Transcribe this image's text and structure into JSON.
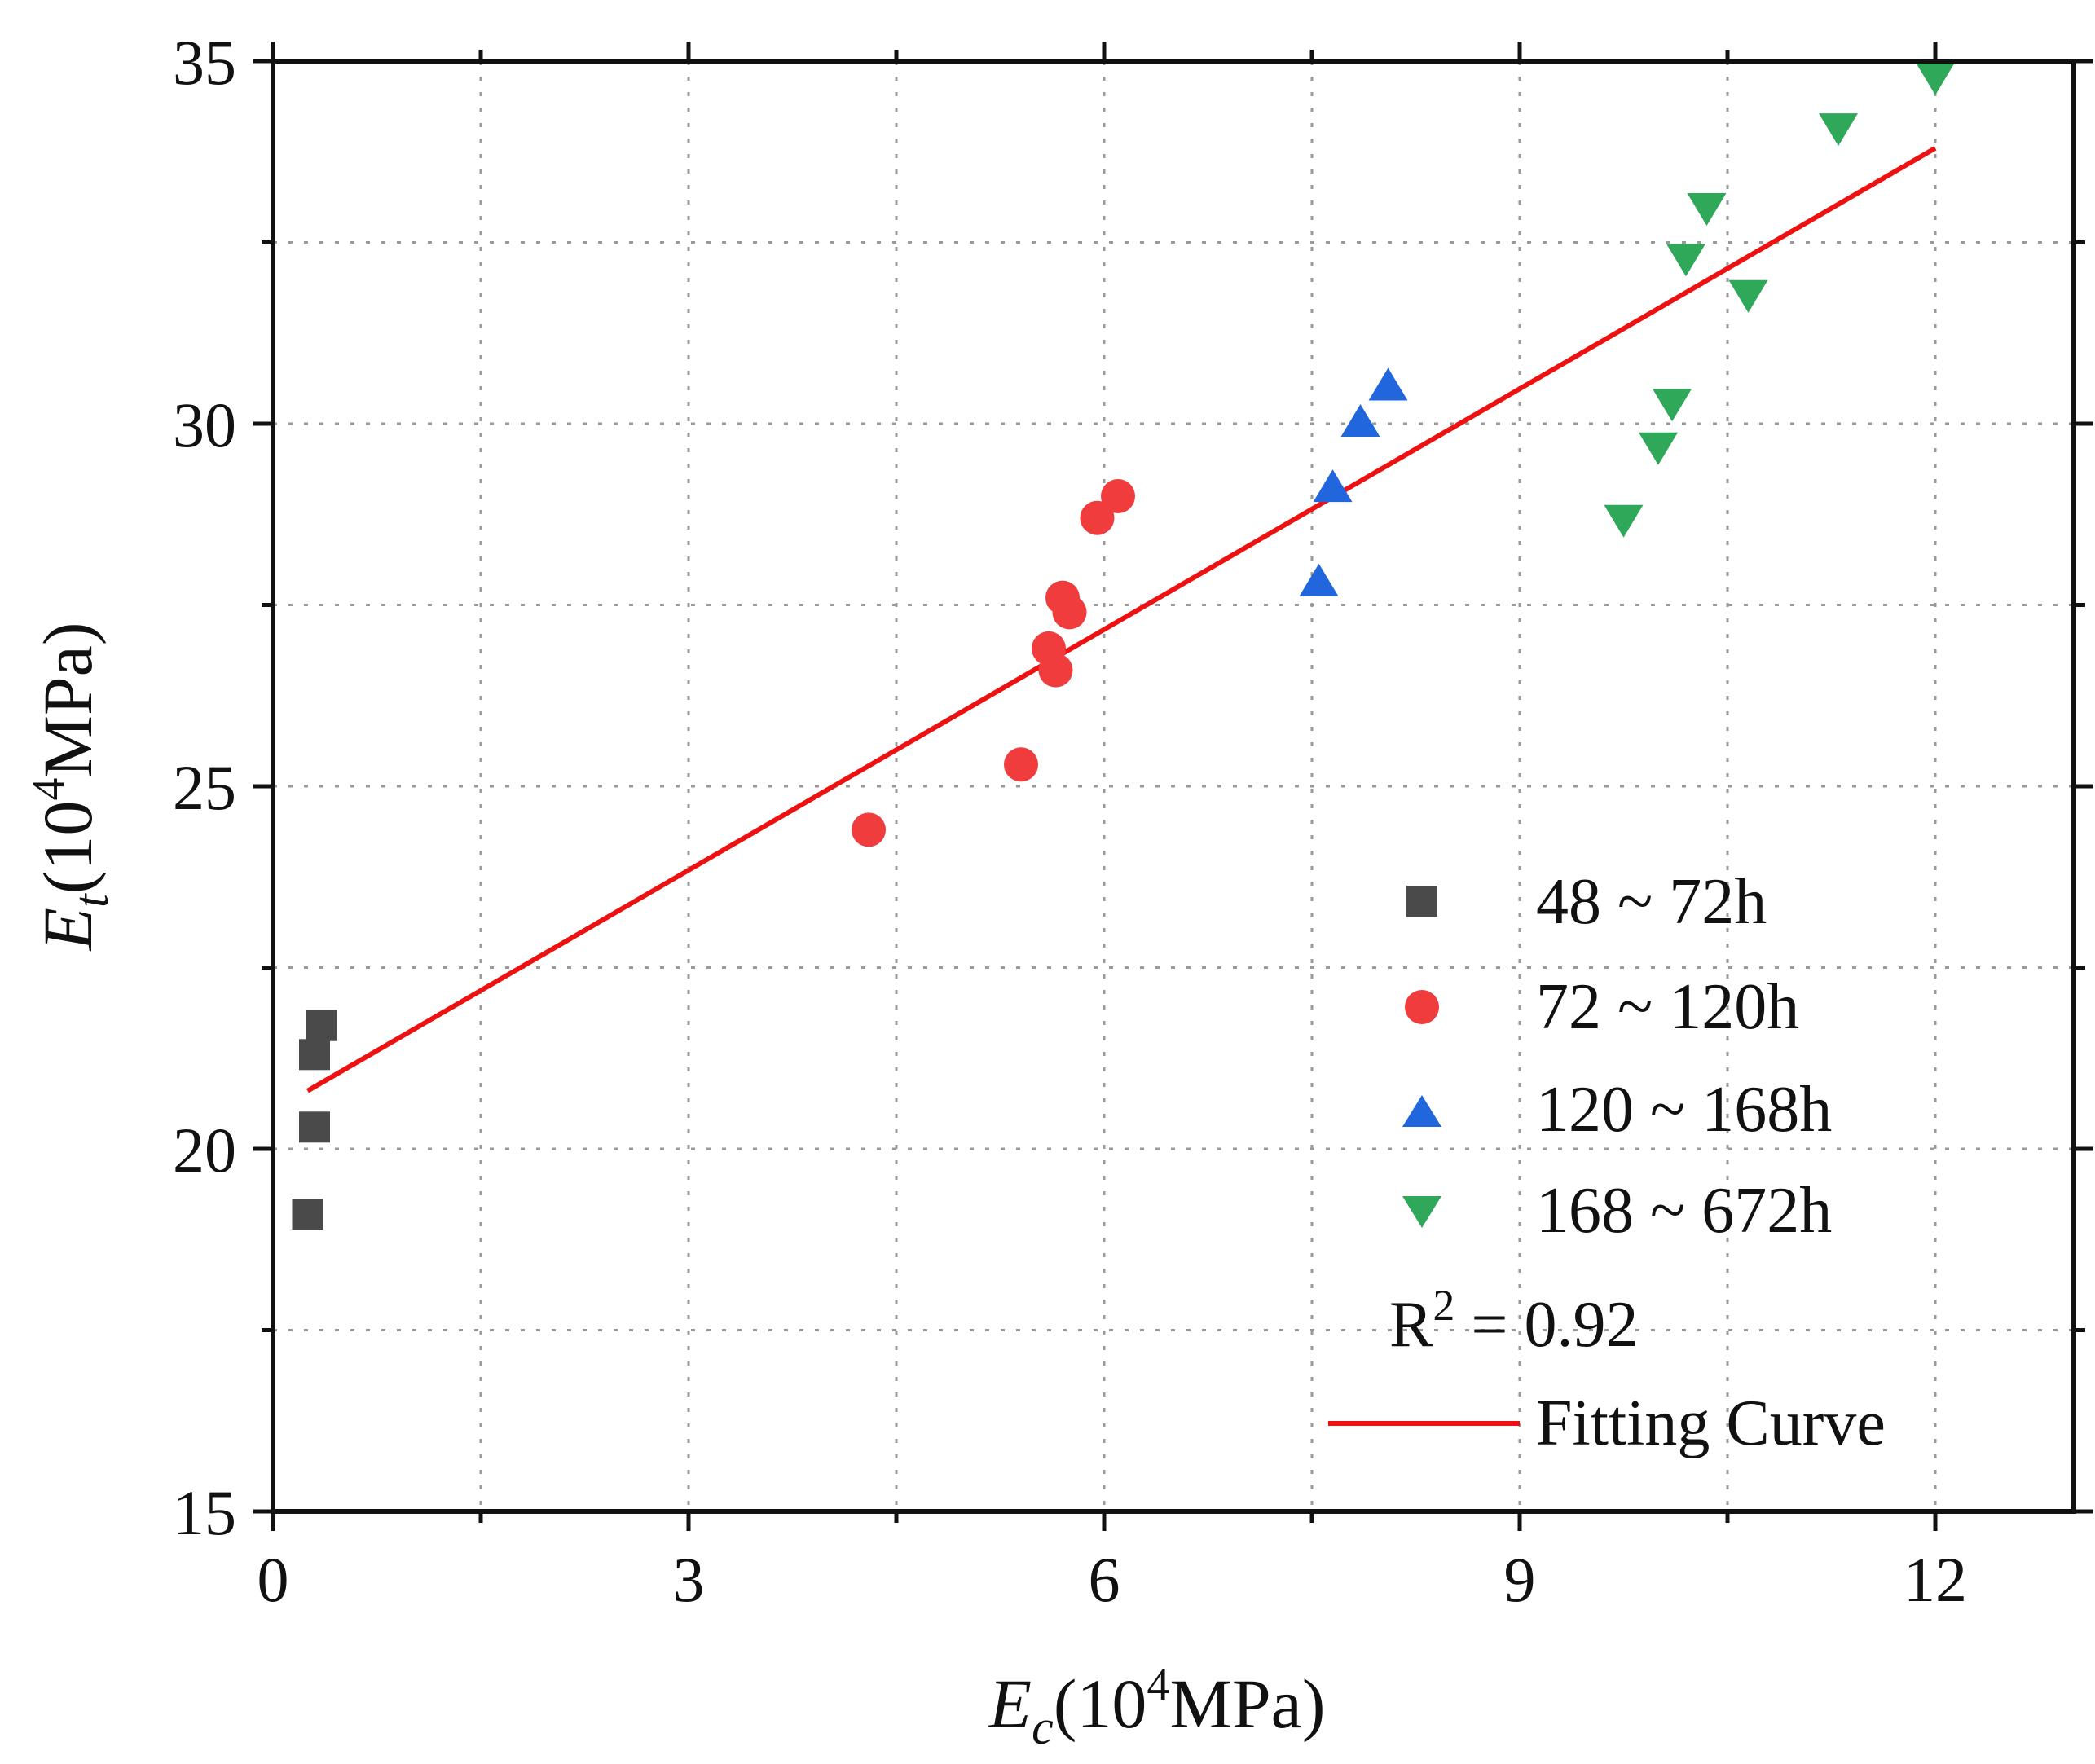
{
  "chart_data": {
    "type": "scatter",
    "xlabel": {
      "main": "E",
      "sub": "c",
      "unit_prefix": "(10",
      "sup": "4",
      "unit_suffix": "MPa)"
    },
    "ylabel": {
      "main": "E",
      "sub": "t",
      "unit_prefix": "(10",
      "sup": "4",
      "unit_suffix": "MPa)"
    },
    "xlim": [
      0,
      13
    ],
    "ylim": [
      15,
      35
    ],
    "xticks": [
      0,
      3,
      6,
      9,
      12
    ],
    "xticks_minor": [
      1.5,
      4.5,
      7.5,
      10.5
    ],
    "yticks": [
      15,
      20,
      25,
      30,
      35
    ],
    "yticks_minor": [
      17.5,
      22.5,
      27.5,
      32.5
    ],
    "grid": true,
    "legend_position": "bottom-right",
    "series": [
      {
        "name": "48 ~ 72h",
        "marker": "square",
        "color": "#4a4a4a",
        "x": [
          0.25,
          0.3,
          0.3,
          0.35
        ],
        "y": [
          19.1,
          20.3,
          21.3,
          21.7
        ]
      },
      {
        "name": "72 ~ 120h",
        "marker": "circle",
        "color": "#f03c3c",
        "x": [
          4.3,
          5.4,
          5.6,
          5.65,
          5.7,
          5.75,
          5.95,
          6.1
        ],
        "y": [
          24.4,
          25.3,
          26.9,
          26.6,
          27.6,
          27.4,
          28.7,
          29.0
        ]
      },
      {
        "name": "120 ~ 168h",
        "marker": "triangle-up",
        "color": "#2266dd",
        "x": [
          7.55,
          7.65,
          7.85,
          8.05
        ],
        "y": [
          27.8,
          29.1,
          30.0,
          30.5
        ]
      },
      {
        "name": "168 ~ 672h",
        "marker": "triangle-down",
        "color": "#2fa85a",
        "x": [
          9.75,
          10.0,
          10.1,
          10.2,
          10.35,
          10.65,
          11.3,
          12.0
        ],
        "y": [
          28.7,
          29.7,
          30.3,
          32.3,
          33.0,
          31.8,
          34.1,
          34.8
        ]
      }
    ],
    "fit_line": {
      "name": "Fitting Curve",
      "color": "#ee1111",
      "x": [
        0.25,
        12.0
      ],
      "y": [
        20.8,
        33.8
      ]
    },
    "annotation": {
      "base": "R",
      "sup": "2",
      "rest": " = 0.92"
    }
  }
}
